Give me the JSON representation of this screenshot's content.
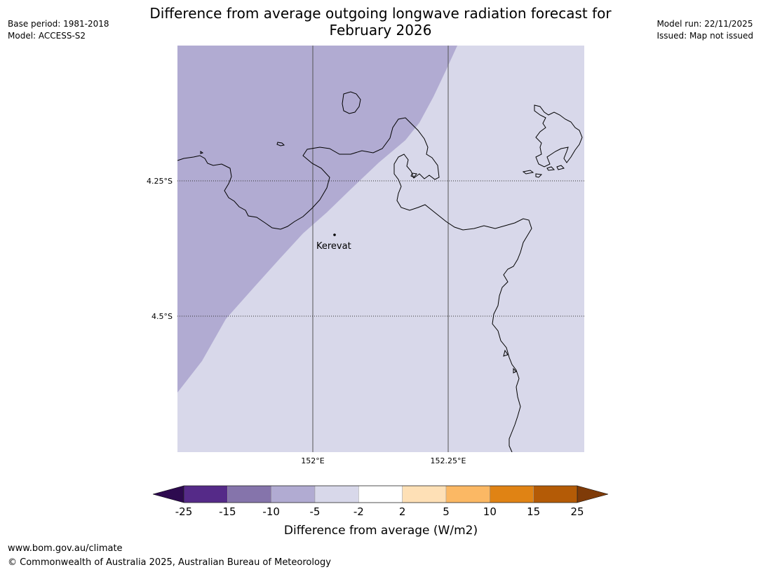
{
  "header": {
    "title_line1": "Difference from average outgoing longwave radiation forecast for",
    "title_line2": "February 2026",
    "base_period": "Base period: 1981-2018",
    "model": "Model: ACCESS-S2",
    "model_run": "Model run: 22/11/2025",
    "issued": "Issued: Map not issued"
  },
  "map": {
    "lat_labels": [
      "4.25°S",
      "4.5°S"
    ],
    "lon_labels": [
      "152°E",
      "152.25°E"
    ],
    "place": {
      "name": "Kerevat",
      "lon": 152.04,
      "lat": -4.35
    },
    "regions": [
      {
        "class": "-10 to -5",
        "color": "#b1abd2"
      },
      {
        "class": "-5 to -2",
        "color": "#d8d8ea"
      }
    ],
    "coastline_color": "#000000",
    "gridline_color": "#555555"
  },
  "legend": {
    "title": "Difference from average (W/m2)",
    "ticks": [
      "-25",
      "-15",
      "-10",
      "-5",
      "-2",
      "2",
      "5",
      "10",
      "15",
      "25"
    ],
    "colors": [
      "#552a88",
      "#8574ab",
      "#b1abd2",
      "#d8d8ea",
      "#ffffff",
      "#fee0b6",
      "#fbb864",
      "#e08314",
      "#b45b06"
    ],
    "under_color": "#2d0a4f",
    "over_color": "#7f3b08"
  },
  "footer": {
    "url": "www.bom.gov.au/climate",
    "copyright": "© Commonwealth of Australia 2025, Australian Bureau of Meteorology"
  }
}
